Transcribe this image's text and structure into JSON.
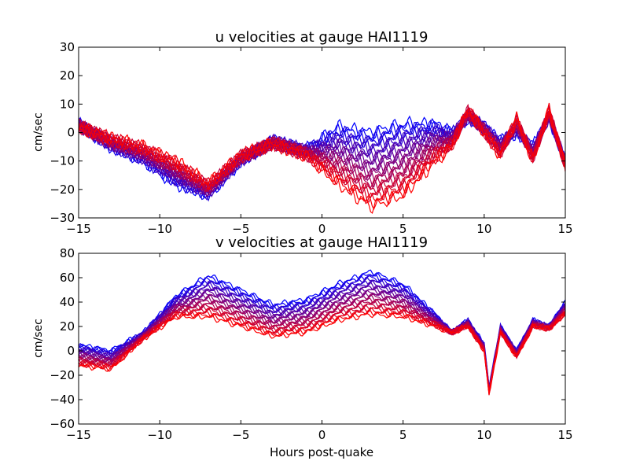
{
  "chart_data": [
    {
      "type": "line",
      "title": "u velocities at gauge HAI1119",
      "xlabel": "",
      "ylabel": "cm/sec",
      "xlim": [
        -15,
        15
      ],
      "ylim": [
        -30,
        30
      ],
      "xticks": [
        -15,
        -10,
        -5,
        0,
        5,
        10,
        15
      ],
      "yticks": [
        -30,
        -20,
        -10,
        0,
        10,
        20,
        30
      ],
      "xtick_labels": [
        "−15",
        "−10",
        "−5",
        "0",
        "5",
        "10",
        "15"
      ],
      "ytick_labels": [
        "−30",
        "−20",
        "−10",
        "0",
        "10",
        "20",
        "30"
      ],
      "grid": false,
      "color_gradient": [
        "#0000ff",
        "#ff0000"
      ],
      "series_count": 24,
      "series_envelope": {
        "x": [
          -15,
          -13,
          -11,
          -9,
          -7,
          -5,
          -3,
          -1,
          1,
          3,
          5,
          7,
          8,
          9,
          10,
          11,
          12,
          13,
          14,
          15
        ],
        "first_series": [
          3,
          -5,
          -10,
          -18,
          -22,
          -10,
          -3,
          -6,
          2,
          0,
          3,
          3,
          0,
          5,
          2,
          -3,
          0,
          -5,
          5,
          -10
        ],
        "last_series": [
          2,
          -2,
          -5,
          -10,
          -18,
          -8,
          -4,
          -8,
          -18,
          -26,
          -22,
          -10,
          -5,
          8,
          0,
          -8,
          5,
          -10,
          8,
          -12
        ]
      }
    },
    {
      "type": "line",
      "title": "v velocities at gauge HAI1119",
      "xlabel": "Hours post-quake",
      "ylabel": "cm/sec",
      "xlim": [
        -15,
        15
      ],
      "ylim": [
        -60,
        80
      ],
      "xticks": [
        -15,
        -10,
        -5,
        0,
        5,
        10,
        15
      ],
      "yticks": [
        -60,
        -40,
        -20,
        0,
        20,
        40,
        60,
        80
      ],
      "xtick_labels": [
        "−15",
        "−10",
        "−5",
        "0",
        "5",
        "10",
        "15"
      ],
      "ytick_labels": [
        "−60",
        "−40",
        "−20",
        "0",
        "20",
        "40",
        "60",
        "80"
      ],
      "grid": false,
      "color_gradient": [
        "#0000ff",
        "#ff0000"
      ],
      "series_count": 24,
      "series_envelope": {
        "x": [
          -15,
          -13,
          -11,
          -9,
          -7,
          -5,
          -3,
          -1,
          1,
          3,
          5,
          7,
          8,
          9,
          10,
          10.3,
          11,
          12,
          13,
          14,
          15
        ],
        "first_series": [
          5,
          0,
          15,
          45,
          62,
          50,
          38,
          42,
          55,
          65,
          55,
          30,
          15,
          25,
          5,
          -30,
          20,
          0,
          25,
          20,
          40
        ],
        "last_series": [
          -12,
          -15,
          10,
          28,
          28,
          20,
          12,
          15,
          25,
          30,
          28,
          20,
          15,
          20,
          0,
          -35,
          15,
          -5,
          20,
          18,
          30
        ]
      }
    }
  ]
}
